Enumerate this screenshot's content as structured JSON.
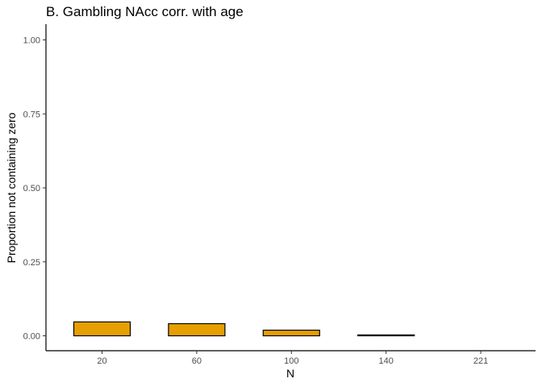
{
  "chart_data": {
    "type": "bar",
    "title": "B. Gambling NAcc corr. with age",
    "xlabel": "N",
    "ylabel": "Proportion not containing zero",
    "categories": [
      "20",
      "60",
      "100",
      "140",
      "221"
    ],
    "values": [
      0.047,
      0.041,
      0.019,
      0.003,
      0.0
    ],
    "ylim": [
      0,
      1
    ],
    "y_ticks": [
      "0.00",
      "0.25",
      "0.50",
      "0.75",
      "1.00"
    ],
    "y_tick_values": [
      0,
      0.25,
      0.5,
      0.75,
      1.0
    ],
    "bar_color": "#E69F00",
    "grid": false,
    "legend": "none"
  }
}
